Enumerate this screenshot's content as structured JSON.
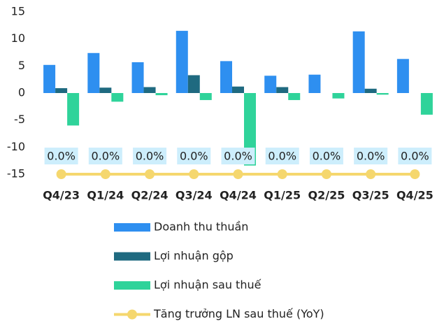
{
  "chart_data": {
    "type": "bar",
    "categories": [
      "Q4/23",
      "Q1/24",
      "Q2/24",
      "Q3/24",
      "Q4/24",
      "Q1/25",
      "Q2/25",
      "Q3/25",
      "Q4/25"
    ],
    "series": [
      {
        "name": "Doanh thu thuần",
        "color": "#2e8ff0",
        "values": [
          5.2,
          7.4,
          5.7,
          11.5,
          5.9,
          3.2,
          3.4,
          11.4,
          6.3
        ]
      },
      {
        "name": "Lợi nhuận gộp",
        "color": "#1f6a80",
        "values": [
          0.9,
          1.0,
          1.1,
          3.3,
          1.2,
          1.1,
          0,
          0.8,
          0
        ]
      },
      {
        "name": "Lợi nhuận sau thuế",
        "color": "#2fd39a",
        "values": [
          -6.0,
          -1.6,
          -0.4,
          -1.3,
          -13.4,
          -1.3,
          -1.0,
          -0.3,
          -4.0
        ]
      },
      {
        "name": "Tăng trưởng LN sau thuế (YoY)",
        "color": "#f5d76e",
        "type": "line",
        "axis": "y2",
        "values": [
          0,
          0,
          0,
          0,
          0,
          0,
          0,
          0,
          0
        ],
        "value_labels": [
          "0.0%",
          "0.0%",
          "0.0%",
          "0.0%",
          "0.0%",
          "0.0%",
          "0.0%",
          "0.0%",
          "0.0%"
        ]
      }
    ],
    "ylim": [
      -15,
      15
    ],
    "yticks": [
      -15,
      -10,
      -5,
      0,
      5,
      10,
      15
    ],
    "y2lim": [
      0,
      1
    ],
    "grid": false,
    "legend": "bottom"
  }
}
